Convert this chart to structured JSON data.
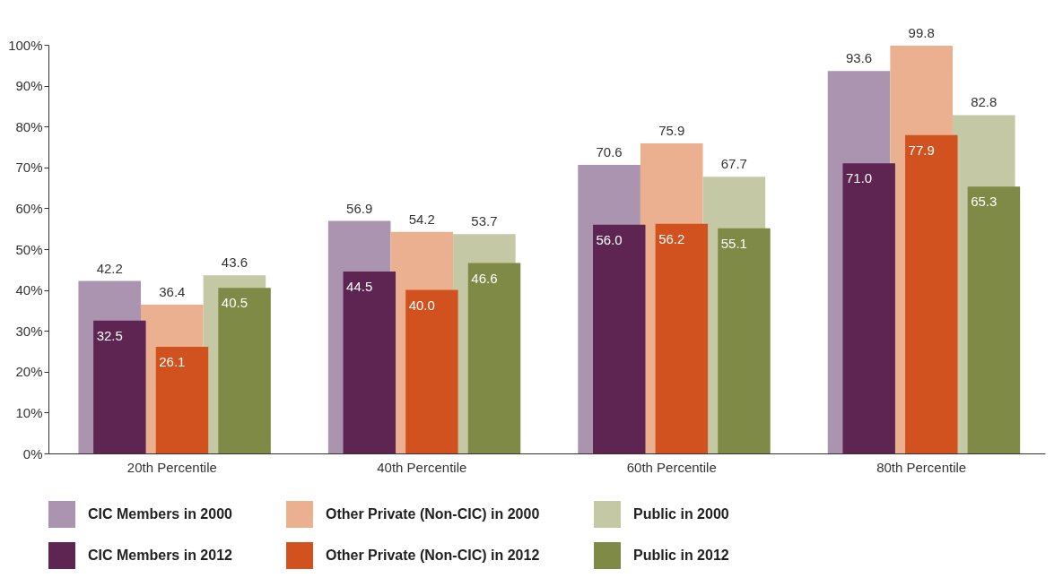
{
  "chart_data": {
    "type": "bar",
    "categories": [
      "20th Percentile",
      "40th Percentile",
      "60th Percentile",
      "80th Percentile"
    ],
    "series": [
      {
        "name": "CIC Members in 2000",
        "color": "#ab94b0",
        "values": [
          42.2,
          56.9,
          70.6,
          93.6
        ],
        "value_labels": [
          "42.2",
          "56.9",
          "70.6",
          "93.6"
        ]
      },
      {
        "name": "Other Private (Non-CIC) in 2000",
        "color": "#ebb08f",
        "values": [
          36.4,
          54.2,
          75.9,
          99.8
        ],
        "value_labels": [
          "36.4",
          "54.2",
          "75.9",
          "99.8"
        ]
      },
      {
        "name": "Public in 2000",
        "color": "#c5c8a5",
        "values": [
          43.6,
          53.7,
          67.7,
          82.8
        ],
        "value_labels": [
          "43.6",
          "53.7",
          "67.7",
          "82.8"
        ]
      },
      {
        "name": "CIC Members in 2012",
        "color": "#5e2553",
        "values": [
          32.5,
          44.5,
          56.0,
          71.0
        ],
        "value_labels": [
          "32.5",
          "44.5",
          "56.0",
          "71.0"
        ]
      },
      {
        "name": "Other Private (Non-CIC) in 2012",
        "color": "#d2521f",
        "values": [
          26.1,
          40.0,
          56.2,
          77.9
        ],
        "value_labels": [
          "26.1",
          "40.0",
          "56.2",
          "77.9"
        ]
      },
      {
        "name": "Public in 2012",
        "color": "#7e8a45",
        "values": [
          40.5,
          46.6,
          55.1,
          65.3
        ],
        "value_labels": [
          "40.5",
          "46.6",
          "55.1",
          "65.3"
        ]
      }
    ],
    "ylim": [
      0,
      100
    ],
    "yticks": [
      {
        "value": 0,
        "label": "0%"
      },
      {
        "value": 10,
        "label": "10%"
      },
      {
        "value": 20,
        "label": "20%"
      },
      {
        "value": 30,
        "label": "30%"
      },
      {
        "value": 40,
        "label": "40%"
      },
      {
        "value": 50,
        "label": "50%"
      },
      {
        "value": 60,
        "label": "60%"
      },
      {
        "value": 70,
        "label": "70%"
      },
      {
        "value": 80,
        "label": "80%"
      },
      {
        "value": 90,
        "label": "90%"
      },
      {
        "value": 100,
        "label": "100%"
      }
    ],
    "legend": "bottom"
  }
}
